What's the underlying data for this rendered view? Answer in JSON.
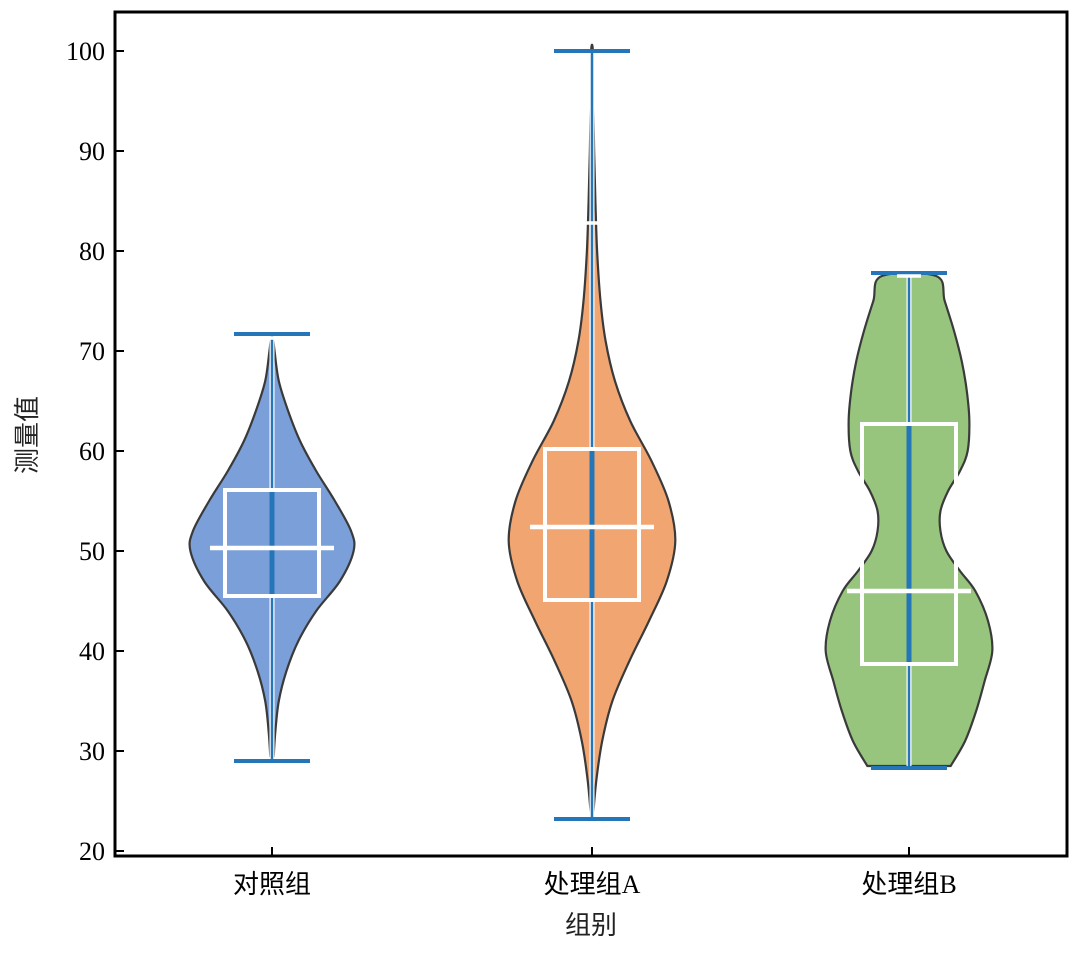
{
  "chart_data": {
    "type": "violin",
    "xlabel": "组别",
    "ylabel": "测量值",
    "ylim": [
      19.6,
      104
    ],
    "yticks": [
      20,
      30,
      40,
      50,
      60,
      70,
      80,
      90,
      100
    ],
    "ytick_labels": [
      "20",
      "30",
      "40",
      "50",
      "60",
      "70",
      "80",
      "90",
      "100"
    ],
    "categories": [
      "对照组",
      "处理组A",
      "处理组B"
    ],
    "groups": [
      {
        "name": "对照组",
        "color": "#7b9fd9",
        "min": 29.0,
        "max": 71.7,
        "q1": 45.5,
        "median": 50.3,
        "q3": 56.1,
        "whisker_low": 29.8,
        "whisker_high": 71.3,
        "density": [
          [
            29.5,
            0.02
          ],
          [
            32,
            0.04
          ],
          [
            35,
            0.08
          ],
          [
            38,
            0.17
          ],
          [
            41,
            0.31
          ],
          [
            44,
            0.52
          ],
          [
            47,
            0.8
          ],
          [
            50,
            0.96
          ],
          [
            52,
            0.93
          ],
          [
            55,
            0.74
          ],
          [
            58,
            0.52
          ],
          [
            61,
            0.33
          ],
          [
            64,
            0.19
          ],
          [
            67,
            0.08
          ],
          [
            70,
            0.03
          ],
          [
            71.5,
            0.01
          ]
        ]
      },
      {
        "name": "处理组A",
        "color": "#f1a672",
        "min": 23.2,
        "max": 100.0,
        "q1": 45.1,
        "median": 52.4,
        "q3": 60.2,
        "whisker_low": 23.5,
        "whisker_high": 82.8,
        "density": [
          [
            23.2,
            0.01
          ],
          [
            27,
            0.05
          ],
          [
            31,
            0.12
          ],
          [
            35,
            0.24
          ],
          [
            39,
            0.44
          ],
          [
            43,
            0.67
          ],
          [
            47,
            0.88
          ],
          [
            51,
            0.98
          ],
          [
            55,
            0.9
          ],
          [
            59,
            0.7
          ],
          [
            63,
            0.45
          ],
          [
            67,
            0.27
          ],
          [
            71,
            0.16
          ],
          [
            75,
            0.1
          ],
          [
            80,
            0.06
          ],
          [
            85,
            0.04
          ],
          [
            90,
            0.025
          ],
          [
            95,
            0.015
          ],
          [
            100,
            0.01
          ]
        ]
      },
      {
        "name": "处理组B",
        "color": "#98c57d",
        "min": 28.3,
        "max": 77.8,
        "q1": 38.7,
        "median": 46.0,
        "q3": 62.7,
        "whisker_low": 28.5,
        "whisker_high": 77.5,
        "density": [
          [
            28.5,
            0.49
          ],
          [
            31,
            0.66
          ],
          [
            34,
            0.79
          ],
          [
            37,
            0.89
          ],
          [
            40,
            0.98
          ],
          [
            43,
            0.93
          ],
          [
            46,
            0.78
          ],
          [
            48,
            0.6
          ],
          [
            50,
            0.44
          ],
          [
            52,
            0.37
          ],
          [
            54,
            0.37
          ],
          [
            56,
            0.46
          ],
          [
            58,
            0.6
          ],
          [
            60,
            0.69
          ],
          [
            63,
            0.71
          ],
          [
            66,
            0.68
          ],
          [
            69,
            0.62
          ],
          [
            72,
            0.53
          ],
          [
            75,
            0.42
          ],
          [
            77.5,
            0.32
          ]
        ]
      }
    ],
    "colors": {
      "edge": "#3a3a3a",
      "box": "#ffffff",
      "center_line": "#2576b8",
      "cap": "#2576b8"
    },
    "grid": false,
    "legend": "none"
  }
}
